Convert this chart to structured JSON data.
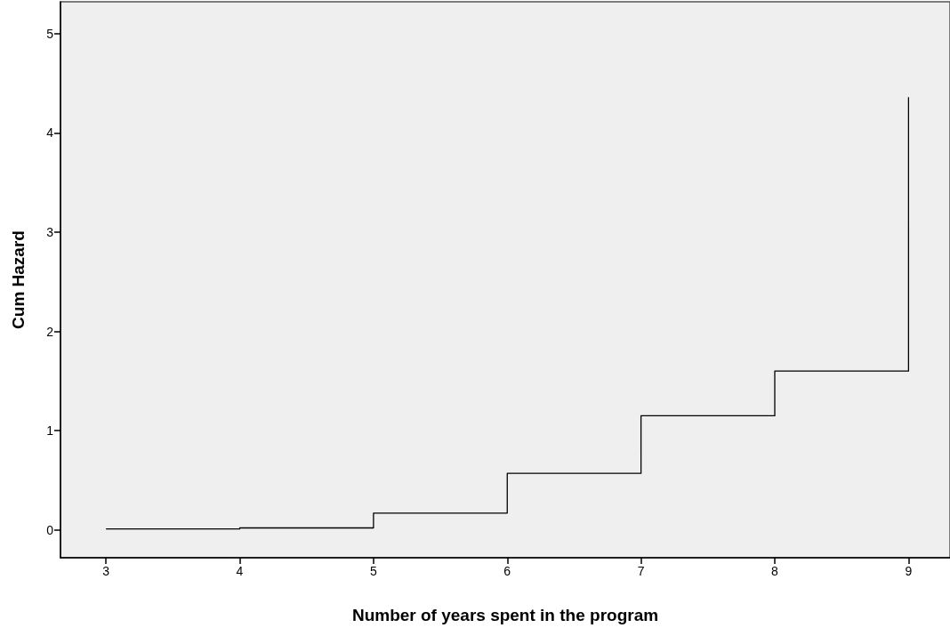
{
  "chart_data": {
    "type": "step",
    "xlabel": "Number of years spent in the program",
    "ylabel": "Cum Hazard",
    "x": [
      3,
      4,
      5,
      6,
      7,
      8,
      9
    ],
    "series": [
      {
        "color": "#000000",
        "values": [
          0.01,
          0.02,
          0.17,
          0.57,
          1.15,
          1.6,
          4.36
        ]
      }
    ],
    "xlim": [
      2.66,
      9.31
    ],
    "xticks": [
      3,
      4,
      5,
      6,
      7,
      8,
      9
    ],
    "ylim": [
      -0.28,
      5.32
    ],
    "yticks": [
      0,
      1,
      2,
      3,
      4,
      5
    ],
    "grid": false,
    "marker": "none",
    "line_style": "solid"
  }
}
